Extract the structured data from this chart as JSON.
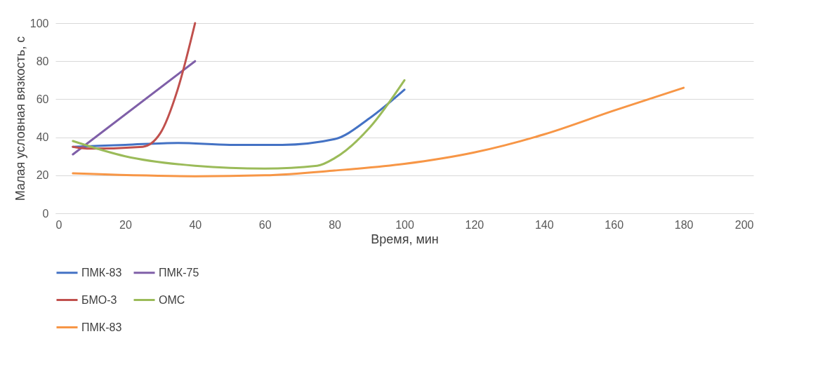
{
  "chart_data": {
    "type": "line",
    "xlabel": "Время, мин",
    "ylabel": "Малая условная вязкость, с",
    "xlim": [
      0,
      200
    ],
    "xticks": [
      0,
      20,
      40,
      60,
      80,
      100,
      120,
      140,
      160,
      180,
      200
    ],
    "ylim": [
      0,
      100
    ],
    "yticks": [
      0,
      20,
      40,
      60,
      80,
      100
    ],
    "grid": "y",
    "legend": "bottom",
    "marker": "none",
    "line_style": "solid",
    "series": [
      {
        "name": "ПМК-83",
        "color": "#4472c4",
        "x": [
          5,
          20,
          35,
          50,
          65,
          80,
          90,
          100
        ],
        "values": [
          35,
          36,
          37,
          36,
          36,
          39,
          50,
          65
        ]
      },
      {
        "name": "ПМК-75",
        "color": "#7f5fa8",
        "x": [
          5,
          40
        ],
        "values": [
          31,
          80
        ]
      },
      {
        "name": "БМО-3",
        "color": "#c0504d",
        "x": [
          5,
          10,
          25,
          30,
          35,
          40
        ],
        "values": [
          35,
          34,
          35,
          42,
          65,
          100
        ]
      },
      {
        "name": "ОМС",
        "color": "#9bbb59",
        "x": [
          5,
          20,
          40,
          60,
          75,
          80,
          90,
          100
        ],
        "values": [
          38,
          30,
          25,
          23.5,
          25,
          29,
          45,
          70
        ]
      },
      {
        "name": "ПМК-83",
        "color": "#f79646",
        "x": [
          5,
          40,
          60,
          80,
          100,
          120,
          140,
          160,
          180
        ],
        "values": [
          21,
          19.5,
          20,
          22.5,
          26,
          32,
          41.5,
          54,
          66
        ]
      }
    ]
  }
}
